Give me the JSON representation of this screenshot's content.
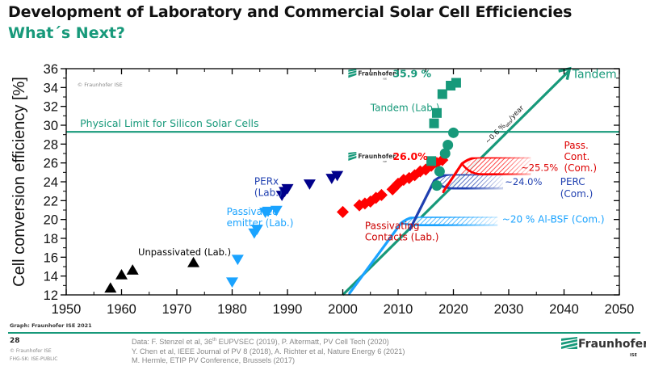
{
  "slide": {
    "title": "Development of Laboratory and Commercial Solar Cell Efficiencies",
    "subtitle": "What´s Next?",
    "graph_credit": "Graph: Fraunhofer ISE 2021",
    "page_number": "28",
    "copyright": "© Fraunhofer ISE",
    "classification": "FHG-SK: ISE-PUBLIC",
    "sources": [
      {
        "pre": "Data: F. Stenzel et al, 36",
        "sup": "th",
        "post": " EUPVSEC (2019), P. Altermatt, PV Cell Tech (2020)"
      },
      {
        "pre": "Y. Chen et al, IEEE Journal of PV 8 (2018), A. Richter et al, Nature Energy 6 (2021)",
        "sup": "",
        "post": ""
      },
      {
        "pre": "M. Hermle, ETIP PV Conference, Brussels (2017)",
        "sup": "",
        "post": ""
      }
    ],
    "logo": {
      "name": "Fraunhofer",
      "sub": "ISE"
    },
    "colors": {
      "brand_green": "#17997a",
      "red": "#ff0000",
      "dark_blue": "#00008b",
      "blue": "#1f3fb0",
      "light_blue": "#1aa3ff",
      "black": "#000000"
    }
  },
  "chart_data": {
    "type": "scatter",
    "title": "Development of Laboratory and Commercial Solar Cell Efficiencies",
    "xlabel": "",
    "ylabel": "Cell conversion efficiency [%]",
    "xlim": [
      1950,
      2050
    ],
    "ylim": [
      12,
      36
    ],
    "x_ticks": [
      1950,
      1960,
      1970,
      1980,
      1990,
      2000,
      2010,
      2020,
      2030,
      2040,
      2050
    ],
    "y_ticks": [
      12,
      14,
      16,
      18,
      20,
      22,
      24,
      26,
      28,
      30,
      32,
      34,
      36
    ],
    "watermark": "© Fraunhofer ISE",
    "physical_limit": {
      "label": "Physical Limit for Silicon Solar Cells",
      "value": 29.3
    },
    "series": [
      {
        "name": "Unpassivated (Lab.)",
        "marker": "triangle-up",
        "color": "#000000",
        "points": [
          [
            1958,
            12.7
          ],
          [
            1960,
            14.1
          ],
          [
            1962,
            14.6
          ],
          [
            1973,
            15.4
          ]
        ]
      },
      {
        "name": "Passivated emitter (Lab.)",
        "marker": "triangle-down",
        "color": "#1aa3ff",
        "points": [
          [
            1980,
            13.4
          ],
          [
            1981,
            15.8
          ],
          [
            1984,
            18.6
          ],
          [
            1984.5,
            19.0
          ],
          [
            1986,
            20.8
          ],
          [
            1986.5,
            20.9
          ],
          [
            1988,
            21.0
          ]
        ]
      },
      {
        "name": "PERx (Lab.)",
        "marker": "triangle-down",
        "color": "#00008b",
        "points": [
          [
            1989,
            22.6
          ],
          [
            1989.5,
            23.0
          ],
          [
            1990,
            23.3
          ],
          [
            1994,
            23.8
          ],
          [
            1998,
            24.4
          ],
          [
            1999,
            24.7
          ]
        ]
      },
      {
        "name": "Passivating Contacts (Lab.)",
        "marker": "diamond",
        "color": "#ff0000",
        "points": [
          [
            2000,
            20.8
          ],
          [
            2003,
            21.5
          ],
          [
            2004,
            21.7
          ],
          [
            2005,
            21.9
          ],
          [
            2006,
            22.3
          ],
          [
            2007,
            22.6
          ],
          [
            2009,
            23.2
          ],
          [
            2010,
            23.8
          ],
          [
            2011,
            24.2
          ],
          [
            2012,
            24.4
          ],
          [
            2013,
            24.7
          ],
          [
            2014,
            25.1
          ],
          [
            2015,
            25.3
          ],
          [
            2016,
            25.7
          ],
          [
            2017,
            26.0
          ],
          [
            2018,
            26.3
          ]
        ]
      },
      {
        "name": "Tandem (Lab.) squares",
        "marker": "square",
        "color": "#17997a",
        "points": [
          [
            2016,
            26.2
          ],
          [
            2016.5,
            30.2
          ],
          [
            2017,
            31.3
          ],
          [
            2018,
            33.3
          ],
          [
            2019.5,
            34.2
          ],
          [
            2020.5,
            34.5
          ]
        ]
      },
      {
        "name": "Tandem (Lab.) circles",
        "marker": "circle",
        "color": "#17997a",
        "points": [
          [
            2017,
            23.6
          ],
          [
            2017.5,
            25.1
          ],
          [
            2018.5,
            27.0
          ],
          [
            2019,
            27.9
          ],
          [
            2020,
            29.2
          ]
        ]
      }
    ],
    "projections": [
      {
        "name": "Tandem",
        "color": "#17997a",
        "x": [
          2000,
          2041
        ],
        "y": [
          12,
          36
        ],
        "arrow": true,
        "rate_label": "~0.6 %abs/year"
      },
      {
        "name": "Al-BSF (Com.)",
        "color": "#1aa3ff",
        "label": "~20 % Al-BSF (Com.)",
        "start": [
          2001,
          12
        ],
        "knee": [
          2012,
          18.8
        ],
        "plateau_low": 19.4,
        "plateau_high": 20.3,
        "plateau_end": 2028
      },
      {
        "name": "PERC (Com.)",
        "color": "#1f3fb0",
        "label": "~24.0%",
        "label2": "PERC (Com.)",
        "start": [
          2012,
          18.8
        ],
        "knee": [
          2018,
          23.3
        ],
        "plateau_low": 23.3,
        "plateau_high": 24.8,
        "plateau_end": 2029
      },
      {
        "name": "Pass. Cont. (Com.)",
        "color": "#ff0000",
        "label": "~25.5%",
        "label2": "Pass. Cont. (Com.)",
        "start": [
          2018,
          22.8
        ],
        "knee": [
          2023,
          26.6
        ],
        "plateau_low": 24.8,
        "plateau_high": 26.6,
        "plateau_end": 2034
      }
    ],
    "annotations": [
      {
        "text": "35.9 %",
        "color": "#17997a",
        "x": 2001,
        "y": 35.2,
        "logo": true
      },
      {
        "text": "26.0%",
        "color": "#ff0000",
        "x": 2001,
        "y": 26.4,
        "logo": true
      },
      {
        "text": "Tandem (Lab.)",
        "color": "#17997a",
        "x": 2005,
        "y": 31.5
      },
      {
        "text": "Tandem",
        "color": "#17997a",
        "x": 2041.5,
        "y": 35.0
      },
      {
        "text": "Passivating",
        "color": "#cc0000",
        "x": 2004,
        "y": 19.0
      },
      {
        "text": "Contacts (Lab.)",
        "color": "#cc0000",
        "x": 2004,
        "y": 17.8
      },
      {
        "text": "PERx",
        "color": "#1f3fb0",
        "x": 1984,
        "y": 23.7
      },
      {
        "text": "(Lab.)",
        "color": "#1f3fb0",
        "x": 1984,
        "y": 22.5
      },
      {
        "text": "Passivated",
        "color": "#1aa3ff",
        "x": 1979,
        "y": 20.5
      },
      {
        "text": "emitter (Lab.)",
        "color": "#1aa3ff",
        "x": 1979,
        "y": 19.3
      },
      {
        "text": "Unpassivated (Lab.)",
        "color": "#000000",
        "x": 1963,
        "y": 16.2
      }
    ]
  }
}
